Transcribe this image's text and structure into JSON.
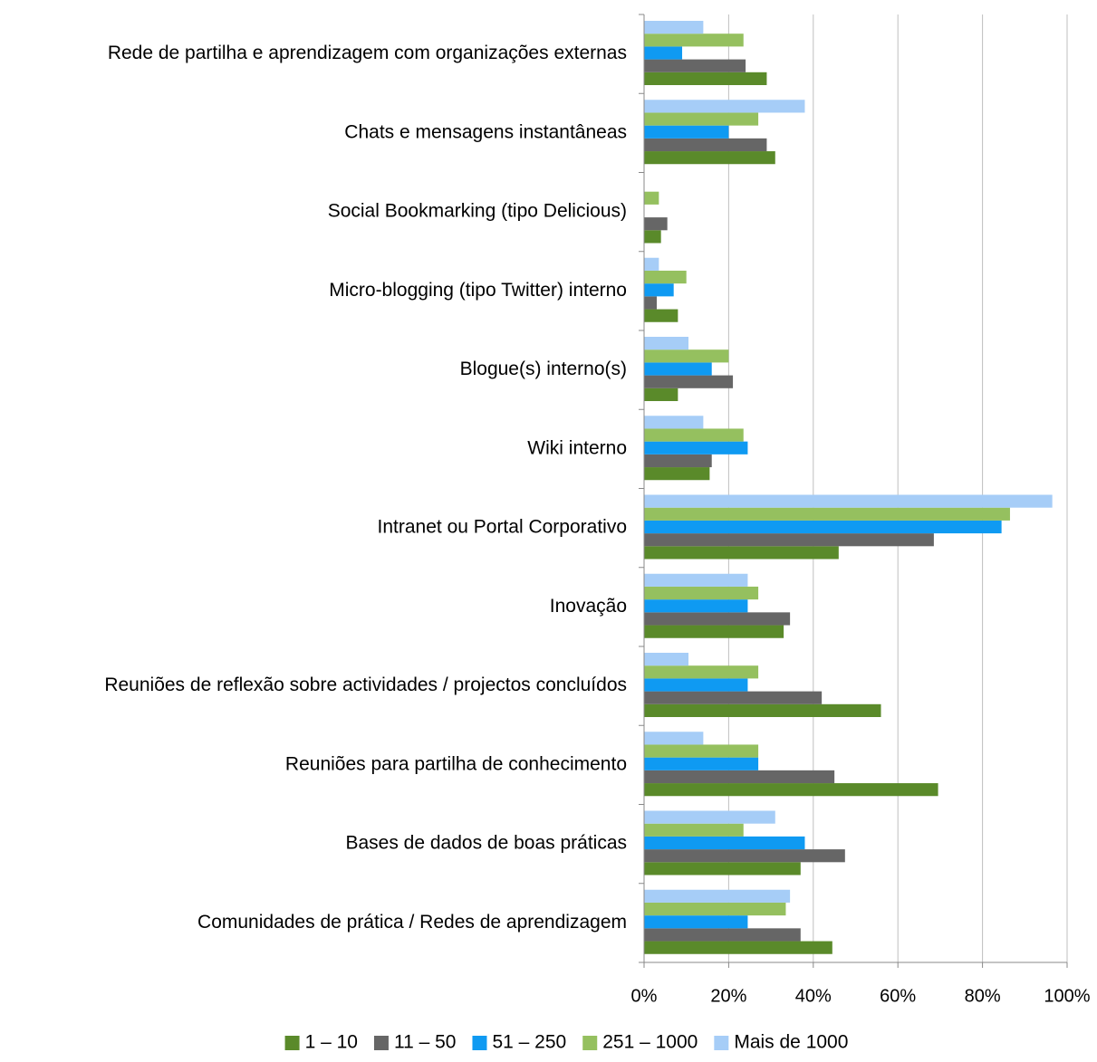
{
  "chart_data": {
    "type": "bar",
    "orientation": "horizontal",
    "title": "",
    "xlabel": "",
    "ylabel": "",
    "xlim": [
      0,
      100
    ],
    "x_ticks": [
      "0%",
      "20%",
      "40%",
      "60%",
      "80%",
      "100%"
    ],
    "x_tick_values": [
      0,
      20,
      40,
      60,
      80,
      100
    ],
    "grid": "vertical",
    "legend_position": "bottom",
    "categories": [
      "Rede de partilha e aprendizagem com organizações externas",
      "Chats e mensagens instantâneas",
      "Social Bookmarking (tipo Delicious)",
      "Micro-blogging (tipo Twitter) interno",
      "Blogue(s) interno(s)",
      "Wiki interno",
      "Intranet ou Portal Corporativo",
      "Inovação",
      "Reuniões de reflexão sobre actividades / projectos concluídos",
      "Reuniões para partilha de conhecimento",
      "Bases de dados de boas práticas",
      "Comunidades de prática / Redes de aprendizagem"
    ],
    "series": [
      {
        "name": "1 – 10",
        "color": "#5a8a2a",
        "values": [
          29,
          31,
          4,
          8,
          8,
          15.5,
          46,
          33,
          56,
          69.5,
          37,
          44.5
        ]
      },
      {
        "name": "11 – 50",
        "color": "#666666",
        "values": [
          24,
          29,
          5.5,
          3,
          21,
          16,
          68.5,
          34.5,
          42,
          45,
          47.5,
          37
        ]
      },
      {
        "name": "51 – 250",
        "color": "#0f9af2",
        "values": [
          9,
          20,
          0,
          7,
          16,
          24.5,
          84.5,
          24.5,
          24.5,
          27,
          38,
          24.5
        ]
      },
      {
        "name": "251 – 1000",
        "color": "#95c05f",
        "values": [
          23.5,
          27,
          3.5,
          10,
          20,
          23.5,
          86.5,
          27,
          27,
          27,
          23.5,
          33.5
        ]
      },
      {
        "name": "Mais de 1000",
        "color": "#a6cdf7",
        "values": [
          14,
          38,
          0,
          3.5,
          10.5,
          14,
          96.5,
          24.5,
          10.5,
          14,
          31,
          34.5
        ]
      }
    ]
  }
}
